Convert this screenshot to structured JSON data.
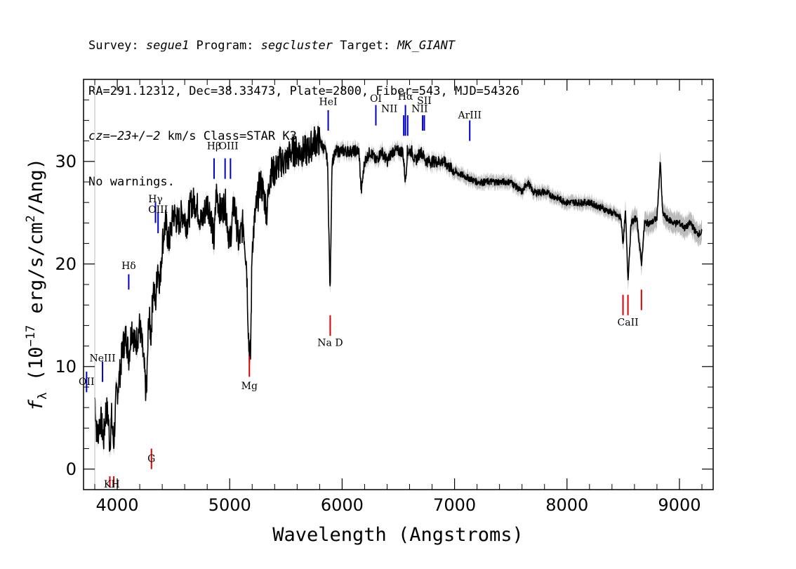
{
  "header": {
    "line1": {
      "survey_label": "Survey: ",
      "survey": "segue1",
      "program_label": " Program: ",
      "program": "segcluster",
      "target_label": " Target: ",
      "target": "MK_GIANT"
    },
    "line2": "RA=291.12312, Dec=38.33473, Plate=2800, Fiber=543, MJD=54326",
    "line3": {
      "cz": "cz=−23+/−2",
      "rest": " km/s Class=STAR K3"
    },
    "line4": "No warnings."
  },
  "colors": {
    "spectrum": "#000000",
    "error_band": "#bbbbbb",
    "emission": "#0000cc",
    "absorption": "#dd0000"
  },
  "chart_data": {
    "type": "line",
    "xlabel": "Wavelength (Angstroms)",
    "ylabel_parts": [
      "f",
      "λ",
      " (10",
      "−17",
      " erg/s/cm",
      "2",
      "/Ang)"
    ],
    "xlim": [
      3700,
      9300
    ],
    "ylim": [
      -2,
      38
    ],
    "xticks": [
      4000,
      5000,
      6000,
      7000,
      8000,
      9000
    ],
    "yticks": [
      0,
      10,
      20,
      30
    ],
    "grid": false,
    "series": [
      {
        "x": [
          3800,
          3820,
          3850,
          3880,
          3900,
          3920,
          3933,
          3950,
          3968,
          3990,
          4020,
          4050,
          4080,
          4102,
          4130,
          4160,
          4200,
          4230,
          4260,
          4280,
          4300,
          4320,
          4340,
          4360,
          4380,
          4400,
          4430,
          4460,
          4500,
          4540,
          4580,
          4620,
          4660,
          4700,
          4750,
          4800,
          4830,
          4861,
          4880,
          4920,
          4960,
          5000,
          5040,
          5080,
          5120,
          5150,
          5170,
          5185,
          5200,
          5230,
          5270,
          5300,
          5330,
          5360,
          5400,
          5450,
          5500,
          5550,
          5600,
          5650,
          5700,
          5750,
          5800,
          5850,
          5870,
          5893,
          5910,
          5950,
          6000,
          6050,
          6100,
          6150,
          6170,
          6200,
          6250,
          6300,
          6350,
          6400,
          6450,
          6500,
          6540,
          6563,
          6580,
          6620,
          6650,
          6700,
          6750,
          6800,
          6900,
          7000,
          7100,
          7200,
          7300,
          7400,
          7500,
          7600,
          7650,
          7700,
          7800,
          7900,
          8000,
          8100,
          8200,
          8300,
          8400,
          8480,
          8498,
          8520,
          8542,
          8570,
          8620,
          8662,
          8690,
          8750,
          8800,
          8830,
          8850,
          8880,
          8950,
          9000,
          9050,
          9100,
          9150,
          9200
        ],
        "y": [
          7,
          3,
          5,
          3,
          6,
          5,
          2.5,
          5,
          2.3,
          7,
          9,
          12,
          13,
          11,
          14,
          12,
          14,
          11,
          7,
          15,
          13,
          18,
          16,
          20,
          18,
          22,
          24,
          22,
          25,
          24,
          25,
          24,
          26,
          26,
          24,
          26,
          25,
          22,
          27,
          25,
          26,
          22,
          26,
          22,
          24,
          20,
          12,
          11,
          22,
          25,
          28,
          27,
          25,
          29,
          29,
          30,
          30,
          31,
          31,
          31,
          31,
          32,
          32,
          31,
          30,
          17,
          30,
          31,
          31,
          31,
          31,
          31,
          27,
          30,
          31,
          30,
          31,
          30,
          31,
          31,
          31,
          28,
          31,
          31,
          30,
          31,
          30,
          30,
          30,
          29,
          28.5,
          28,
          28,
          28,
          28,
          27,
          28,
          27,
          27,
          26.5,
          26,
          26,
          26,
          25.5,
          25,
          24.5,
          22,
          25,
          18.5,
          24,
          24.5,
          20,
          24,
          24,
          24.5,
          30,
          25,
          24.5,
          24,
          24,
          23.5,
          24,
          23,
          23
        ]
      }
    ],
    "annotations": {
      "emission": [
        {
          "name": "OII",
          "wave": 3727
        },
        {
          "name": "NeIII",
          "wave": 3869
        },
        {
          "name": "Hδ",
          "wave": 4102
        },
        {
          "name": "Hγ",
          "wave": 4340
        },
        {
          "name": "OIII",
          "wave": 4363
        },
        {
          "name": "Hβ",
          "wave": 4861
        },
        {
          "name": "OIII",
          "wave": 4959
        },
        {
          "name": "OIII",
          "wave": 5007
        },
        {
          "name": "HeI",
          "wave": 5876
        },
        {
          "name": "OI",
          "wave": 6300
        },
        {
          "name": "NII",
          "wave": 6548
        },
        {
          "name": "Hα",
          "wave": 6563
        },
        {
          "name": "NII",
          "wave": 6583
        },
        {
          "name": "SII",
          "wave": 6716
        },
        {
          "name": "SII",
          "wave": 6731
        },
        {
          "name": "ArIII",
          "wave": 7135
        }
      ],
      "absorption": [
        {
          "name": "K",
          "wave": 3934
        },
        {
          "name": "H",
          "wave": 3969
        },
        {
          "name": "G",
          "wave": 4304
        },
        {
          "name": "Mg",
          "wave": 5175
        },
        {
          "name": "Na D",
          "wave": 5894
        },
        {
          "name": "CaII",
          "wave": 8498
        },
        {
          "name": "CaII",
          "wave": 8542
        },
        {
          "name": "CaII",
          "wave": 8662
        }
      ],
      "labels": [
        {
          "text": "OII",
          "kind": "emission",
          "wave": 3727,
          "ly": 8.2
        },
        {
          "text": "NeIII",
          "kind": "emission",
          "wave": 3869,
          "ly": 10.5
        },
        {
          "text": "Hδ",
          "kind": "emission",
          "wave": 4102,
          "ly": 19.5
        },
        {
          "text": "Hγ",
          "kind": "emission",
          "wave": 4340,
          "ly": 26.0
        },
        {
          "text": "OIII",
          "kind": "emission",
          "wave": 4363,
          "ly": 25.0
        },
        {
          "text": "Hβ",
          "kind": "emission",
          "wave": 4861,
          "ly": 31.2
        },
        {
          "text": "OIII",
          "kind": "emission",
          "wave": 4990,
          "ly": 31.2
        },
        {
          "text": "HeI",
          "kind": "emission",
          "wave": 5876,
          "ly": 35.5
        },
        {
          "text": "OI",
          "kind": "emission",
          "wave": 6300,
          "ly": 35.8
        },
        {
          "text": "NII",
          "kind": "emission",
          "wave": 6420,
          "ly": 34.8
        },
        {
          "text": "Hα",
          "kind": "emission",
          "wave": 6563,
          "ly": 36.0
        },
        {
          "text": "NII",
          "kind": "emission",
          "wave": 6690,
          "ly": 34.8
        },
        {
          "text": "SII",
          "kind": "emission",
          "wave": 6731,
          "ly": 35.6
        },
        {
          "text": "ArIII",
          "kind": "emission",
          "wave": 7135,
          "ly": 34.2
        },
        {
          "text": "KH",
          "kind": "absorption",
          "wave": 3951,
          "ly": -1.8
        },
        {
          "text": "G",
          "kind": "absorption",
          "wave": 4304,
          "ly": 0.7
        },
        {
          "text": "Mg",
          "kind": "absorption",
          "wave": 5175,
          "ly": 7.8
        },
        {
          "text": "Na D",
          "kind": "absorption",
          "wave": 5894,
          "ly": 12.0
        },
        {
          "text": "CaII",
          "kind": "absorption",
          "wave": 8542,
          "ly": 14.0
        }
      ]
    }
  }
}
